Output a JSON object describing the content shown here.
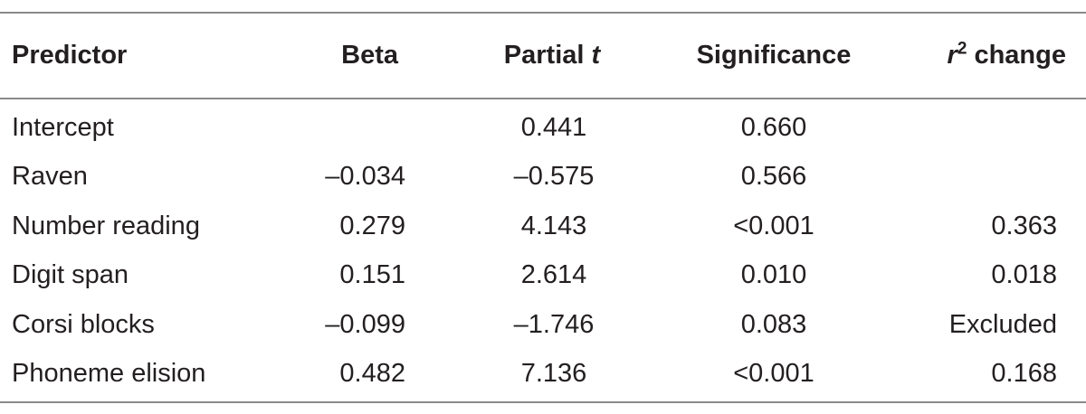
{
  "table": {
    "headers": {
      "predictor": "Predictor",
      "beta": "Beta",
      "partial_t_prefix": "Partial ",
      "partial_t_var": "t",
      "significance": "Significance",
      "r2_var": "r",
      "r2_exp": "2",
      "r2_suffix": " change"
    },
    "rows": [
      {
        "predictor": "Intercept",
        "beta": "",
        "partial_t": "0.441",
        "significance": "0.660",
        "r2_change": ""
      },
      {
        "predictor": "Raven",
        "beta": "–0.034",
        "partial_t": "–0.575",
        "significance": "0.566",
        "r2_change": ""
      },
      {
        "predictor": "Number reading",
        "beta": "0.279",
        "partial_t": "4.143",
        "significance": "<0.001",
        "r2_change": "0.363"
      },
      {
        "predictor": "Digit span",
        "beta": "0.151",
        "partial_t": "2.614",
        "significance": "0.010",
        "r2_change": "0.018"
      },
      {
        "predictor": "Corsi blocks",
        "beta": "–0.099",
        "partial_t": "–1.746",
        "significance": "0.083",
        "r2_change": "Excluded"
      },
      {
        "predictor": "Phoneme elision",
        "beta": "0.482",
        "partial_t": "7.136",
        "significance": "<0.001",
        "r2_change": "0.168"
      }
    ]
  }
}
